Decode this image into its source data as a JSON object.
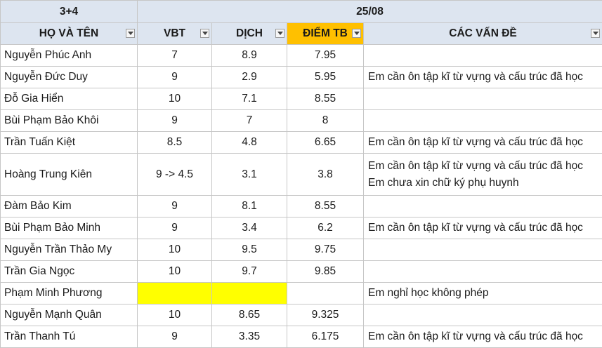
{
  "header_top": {
    "class_label": "3+4",
    "date_label": "25/08"
  },
  "columns": [
    "HỌ VÀ TÊN",
    "VBT",
    "DỊCH",
    "ĐIỂM TB",
    "CÁC VẤN ĐỀ"
  ],
  "rows": [
    {
      "name": "Nguyễn Phúc Anh",
      "vbt": "7",
      "dich": "8.9",
      "dtb": "7.95",
      "issues": []
    },
    {
      "name": "Nguyễn Đức Duy",
      "vbt": "9",
      "dich": "2.9",
      "dtb": "5.95",
      "issues": [
        "Em cần ôn tập kĩ từ vựng và cấu trúc đã học"
      ]
    },
    {
      "name": "Đỗ Gia Hiển",
      "vbt": "10",
      "dich": "7.1",
      "dtb": "8.55",
      "issues": []
    },
    {
      "name": "Bùi Phạm Bảo Khôi",
      "vbt": "9",
      "dich": "7",
      "dtb": "8",
      "issues": []
    },
    {
      "name": "Trần Tuấn Kiệt",
      "vbt": "8.5",
      "dich": "4.8",
      "dtb": "6.65",
      "issues": [
        "Em cần ôn tập kĩ từ vựng và cấu trúc đã học"
      ]
    },
    {
      "name": "Hoàng Trung Kiên",
      "vbt": "9 -> 4.5",
      "dich": "3.1",
      "dtb": "3.8",
      "issues": [
        "Em cần ôn tập kĩ từ vựng và cấu trúc đã học",
        "Em chưa xin chữ ký phụ huynh"
      ]
    },
    {
      "name": "Đàm Bảo Kim",
      "vbt": "9",
      "dich": "8.1",
      "dtb": "8.55",
      "issues": []
    },
    {
      "name": "Bùi Phạm Bảo Minh",
      "vbt": "9",
      "dich": "3.4",
      "dtb": "6.2",
      "issues": [
        "Em cần ôn tập kĩ từ vựng và cấu trúc đã học"
      ]
    },
    {
      "name": "Nguyễn Trần Thảo My",
      "vbt": "10",
      "dich": "9.5",
      "dtb": "9.75",
      "issues": []
    },
    {
      "name": "Trần Gia Ngọc",
      "vbt": "10",
      "dich": "9.7",
      "dtb": "9.85",
      "issues": []
    },
    {
      "name": "Phạm Minh Phương",
      "vbt": "",
      "dich": "",
      "dtb": "",
      "issues": [
        "Em nghỉ học không phép"
      ],
      "highlight": true
    },
    {
      "name": "Nguyễn Mạnh Quân",
      "vbt": "10",
      "dich": "8.65",
      "dtb": "9.325",
      "issues": []
    },
    {
      "name": "Trần Thanh Tú",
      "vbt": "9",
      "dich": "3.35",
      "dtb": "6.175",
      "issues": [
        "Em cần ôn tập kĩ từ vựng và cấu trúc đã học"
      ]
    }
  ],
  "colors": {
    "header_bg": "#dde5f0",
    "avg_header": "#ffc000",
    "missing_cell": "#ffff00",
    "grid": "#c6c6c6"
  }
}
